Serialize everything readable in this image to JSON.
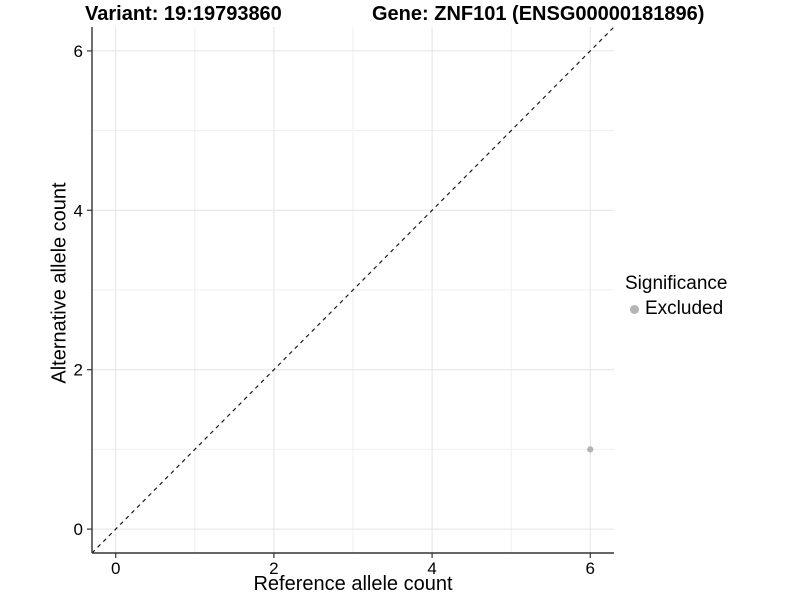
{
  "chart_data": {
    "type": "scatter",
    "titles": {
      "variant": "Variant: 19:19793860",
      "gene": "Gene: ZNF101 (ENSG00000181896)"
    },
    "xlabel": "Reference allele count",
    "ylabel": "Alternative allele count",
    "xlim": [
      -0.3,
      6.3
    ],
    "ylim": [
      -0.3,
      6.3
    ],
    "xticks": [
      0,
      2,
      4,
      6
    ],
    "yticks": [
      0,
      2,
      4,
      6
    ],
    "grid": {
      "major": [
        0,
        2,
        4,
        6
      ],
      "minor": [
        1,
        3,
        5
      ]
    },
    "reference_line": {
      "type": "identity",
      "slope": 1,
      "intercept": 0,
      "style": "dashed",
      "color": "#1a1a1a"
    },
    "series": [
      {
        "name": "Excluded",
        "color": "#b4b4b4",
        "points": [
          [
            6,
            1
          ]
        ]
      }
    ],
    "legend": {
      "title": "Significance",
      "position": "right",
      "items": [
        {
          "label": "Excluded",
          "color": "#b4b4b4",
          "marker": "circle"
        }
      ]
    },
    "colors": {
      "grid_major": "#e4e4e4",
      "grid_minor": "#efefef",
      "axis_line": "#333333",
      "text": "#000000",
      "background": "#ffffff"
    }
  }
}
